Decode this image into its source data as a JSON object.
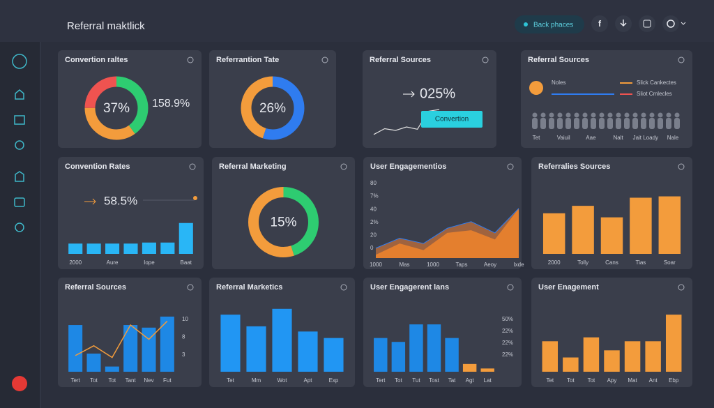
{
  "header": {
    "title": "Referral maktlick",
    "button": "Back phaces",
    "social": "f"
  },
  "cards": [
    {
      "title": "Convertion raltes",
      "type": "donut",
      "center": "37%",
      "side": "158.9%",
      "segments": [
        {
          "value": 40,
          "color": "#2ecc71"
        },
        {
          "value": 35,
          "color": "#f39c3c"
        },
        {
          "value": 25,
          "color": "#ef5350"
        }
      ]
    },
    {
      "title": "Referrantion Tate",
      "type": "donut",
      "center": "26%",
      "segments": [
        {
          "value": 55,
          "color": "#2f7cf0"
        },
        {
          "value": 45,
          "color": "#f39c3c"
        }
      ]
    },
    {
      "title": "Referral Sources",
      "type": "spark",
      "headline": "025%",
      "button": "Convertion",
      "values": [
        5,
        15,
        12,
        18,
        14,
        45,
        48
      ],
      "color": "#e0e0e0",
      "ylim": [
        0,
        60
      ]
    },
    {
      "title": "Referral Sources",
      "type": "people",
      "legend_title": "Noles",
      "legend": [
        {
          "name": "Slick Cankectes",
          "color": "#f39c3c"
        },
        {
          "name": "Sliot Cmlecles",
          "color": "#ef5350"
        }
      ],
      "x_labels": [
        "Tet",
        "Vaiuil",
        "Aae",
        "Nalt",
        "Jait Loady",
        "Nale"
      ]
    },
    {
      "title": "Convention Rates",
      "type": "bars",
      "headline": "58.5%",
      "color": "#29b6f6",
      "values": [
        20,
        20,
        20,
        20,
        22,
        22,
        60
      ],
      "ylim": [
        0,
        80
      ],
      "x_labels": [
        "2000",
        "Aure",
        "Iope",
        "Baat"
      ]
    },
    {
      "title": "Referral Marketing",
      "type": "donut",
      "center": "15%",
      "segments": [
        {
          "value": 45,
          "color": "#2ecc71"
        },
        {
          "value": 55,
          "color": "#f39c3c"
        }
      ]
    },
    {
      "title": "User Engagementios",
      "type": "area",
      "ylim": [
        0,
        100
      ],
      "side_labels": [
        "80",
        "7%",
        "40",
        "2%",
        "20",
        "0"
      ],
      "x_labels": [
        "1000",
        "Mas",
        "1000",
        "Taps",
        "Aeoy",
        "Ixde"
      ],
      "series": [
        {
          "color": "#b36a3c",
          "values": [
            15,
            30,
            22,
            45,
            55,
            38,
            75
          ]
        },
        {
          "color": "#f0842c",
          "values": [
            5,
            22,
            12,
            38,
            42,
            28,
            75
          ]
        }
      ]
    },
    {
      "title": "Referralies Sources",
      "type": "bars",
      "color": "#f39c3c",
      "ylim": [
        0,
        100
      ],
      "values": [
        60,
        71,
        54,
        83,
        85
      ],
      "x_labels": [
        "2000",
        "Tolly",
        "Cans",
        "Tias",
        "Soar"
      ]
    },
    {
      "title": "Referral Sources",
      "type": "combo",
      "color": "#1e88e5",
      "line_color": "#f39c3c",
      "ylim": [
        0,
        100
      ],
      "values": [
        72,
        28,
        8,
        72,
        68,
        85
      ],
      "line": [
        25,
        40,
        22,
        72,
        50,
        78
      ],
      "side_labels": [
        "10",
        "8",
        "3"
      ],
      "x_labels": [
        "Tert",
        "Tot",
        "Tot",
        "Tant",
        "Nev",
        "Fut"
      ]
    },
    {
      "title": "Referral Marketics",
      "type": "bars",
      "color": "#2196f3",
      "ylim": [
        0,
        100
      ],
      "values": [
        88,
        70,
        97,
        62,
        52
      ],
      "x_labels": [
        "Tet",
        "Mm",
        "Wot",
        "Apt",
        "Exp"
      ]
    },
    {
      "title": "User Engagerent lans",
      "type": "bars",
      "color": "#1e88e5",
      "ylim": [
        0,
        100
      ],
      "values": [
        52,
        46,
        73,
        73,
        52,
        12,
        5
      ],
      "side_labels": [
        "50%",
        "22%",
        "22%",
        "22%"
      ],
      "x_labels": [
        "Tert",
        "Tot",
        "Tut",
        "Tost",
        "Tat",
        "Agt",
        "Lat"
      ],
      "accent": {
        "from": 5,
        "color": "#f39c3c"
      }
    },
    {
      "title": "User Enagement",
      "type": "bars",
      "color": "#f39c3c",
      "ylim": [
        0,
        100
      ],
      "values": [
        47,
        22,
        53,
        33,
        47,
        47,
        88
      ],
      "x_labels": [
        "Tet",
        "Tot",
        "Tot",
        "Apy",
        "Mat",
        "Ant",
        "Ebp"
      ]
    }
  ]
}
